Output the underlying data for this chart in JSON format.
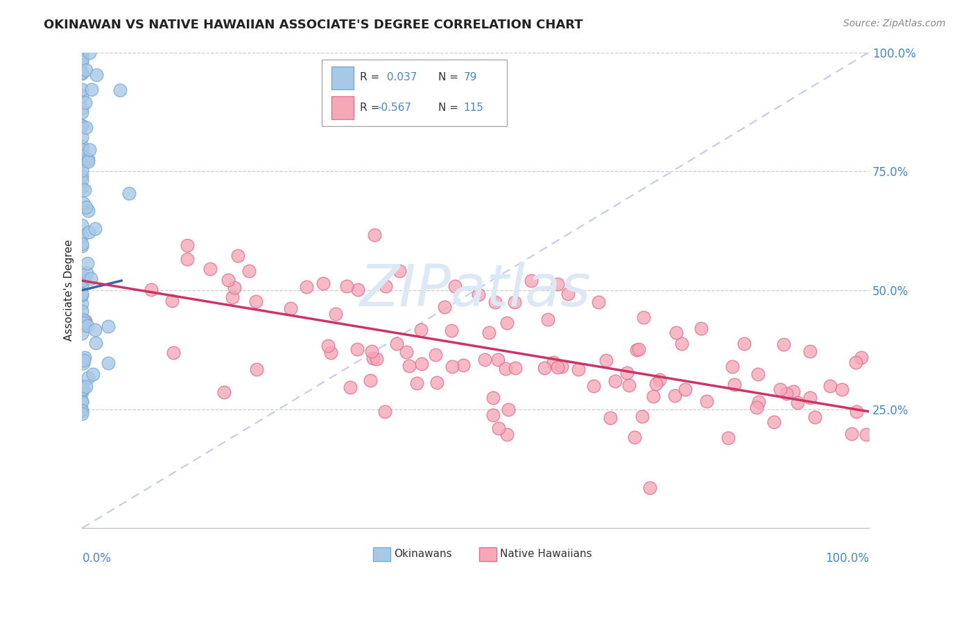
{
  "title": "OKINAWAN VS NATIVE HAWAIIAN ASSOCIATE'S DEGREE CORRELATION CHART",
  "source": "Source: ZipAtlas.com",
  "ylabel": "Associate's Degree",
  "okinawan_color": "#a8c8e8",
  "okinawan_edge": "#7aaad0",
  "native_hawaiian_color": "#f5a8b8",
  "native_hawaiian_edge": "#e07090",
  "trend_okinawan_color": "#3366aa",
  "trend_native_color": "#cc3366",
  "diagonal_color": "#c0ccee",
  "background_color": "#ffffff",
  "grid_color": "#cccccc",
  "title_color": "#222222",
  "axis_label_color": "#4488cc",
  "watermark_color": "#dde8f5",
  "r1": "0.037",
  "n1": "79",
  "r2": "-0.567",
  "n2": "115",
  "ok_seed": 12,
  "nh_seed": 77
}
